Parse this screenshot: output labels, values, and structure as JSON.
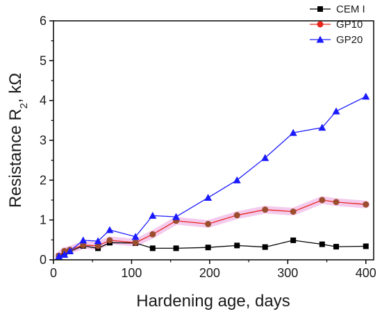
{
  "chart_data": {
    "type": "line",
    "title": "",
    "xlabel": "Hardening age, days",
    "ylabel": "Resistance R",
    "ylabel_subscript": "2",
    "ylabel_unit": ",  kΩ",
    "xlim": [
      0,
      410
    ],
    "ylim": [
      0,
      6
    ],
    "xticks": [
      0,
      100,
      200,
      300,
      400
    ],
    "yticks": [
      0,
      1,
      2,
      3,
      4,
      5,
      6
    ],
    "grid": false,
    "legend_position": "top-right",
    "series": [
      {
        "name": "CEM I",
        "color": "#000000",
        "marker": "square",
        "highlight": false,
        "x": [
          7,
          14,
          21,
          38,
          57,
          72,
          105,
          127,
          157,
          198,
          235,
          271,
          307,
          344,
          362,
          400
        ],
        "y": [
          0.09,
          0.15,
          0.21,
          0.35,
          0.29,
          0.43,
          0.42,
          0.29,
          0.29,
          0.31,
          0.36,
          0.32,
          0.49,
          0.39,
          0.33,
          0.34
        ]
      },
      {
        "name": "GP10",
        "color": "#e8251c",
        "marker": "circle",
        "highlight": true,
        "x": [
          7,
          14,
          21,
          38,
          57,
          72,
          105,
          127,
          157,
          198,
          235,
          271,
          307,
          344,
          362,
          400
        ],
        "y": [
          0.1,
          0.22,
          0.25,
          0.37,
          0.35,
          0.49,
          0.43,
          0.64,
          0.98,
          0.9,
          1.12,
          1.26,
          1.21,
          1.5,
          1.45,
          1.39
        ]
      },
      {
        "name": "GP20",
        "color": "#1a1aff",
        "marker": "triangle",
        "highlight": false,
        "x": [
          7,
          14,
          21,
          38,
          57,
          72,
          105,
          127,
          157,
          198,
          235,
          271,
          307,
          344,
          362,
          400
        ],
        "y": [
          0.09,
          0.13,
          0.22,
          0.49,
          0.47,
          0.75,
          0.58,
          1.11,
          1.08,
          1.56,
          2.0,
          2.56,
          3.19,
          3.32,
          3.73,
          4.1
        ]
      }
    ]
  }
}
